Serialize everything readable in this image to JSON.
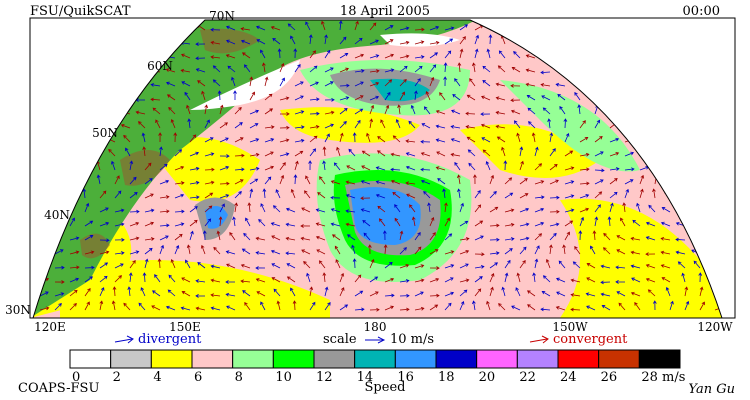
{
  "header": {
    "title": "FSU/QuikSCAT",
    "date": "18 April 2005",
    "time": "00:00"
  },
  "map": {
    "latitude_labels": [
      "70N",
      "60N",
      "50N",
      "40N",
      "30N"
    ],
    "longitude_labels": [
      "120E",
      "150E",
      "180",
      "150W",
      "120W"
    ]
  },
  "legend": {
    "divergent": "divergent",
    "scale": "scale",
    "scale_value": "10 m/s",
    "convergent": "convergent"
  },
  "colorbar": {
    "label": "Speed",
    "unit": "m/s",
    "ticks": [
      0,
      2,
      4,
      6,
      8,
      10,
      12,
      14,
      16,
      18,
      20,
      22,
      24,
      26,
      28
    ],
    "colors": [
      "#ffffff",
      "#c8c8c8",
      "#ffff00",
      "#ffc8c8",
      "#96ff96",
      "#00ff00",
      "#999999",
      "#00b4b4",
      "#3296ff",
      "#0000c8",
      "#ff64ff",
      "#b482ff",
      "#ff0000",
      "#c83200",
      "#000000"
    ]
  },
  "footer": {
    "left": "COAPS-FSU",
    "right": "Yan Gu"
  }
}
